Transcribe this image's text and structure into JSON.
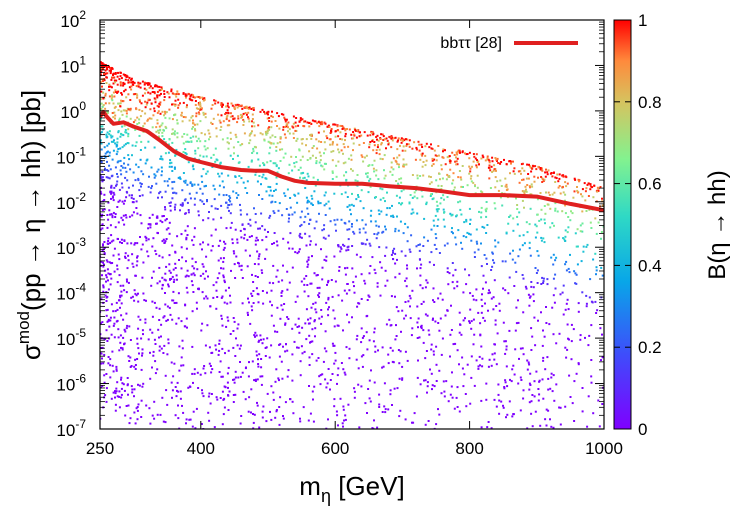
{
  "chart_data": {
    "type": "scatter",
    "x_scale": "linear",
    "y_scale": "log",
    "xlabel": {
      "base": "m",
      "sub": "η",
      "rest": " [GeV]"
    },
    "ylabel": {
      "base": "σ",
      "sup": "mod",
      "rest": "(pp → η → hh) [pb]"
    },
    "xlim": [
      250,
      1000
    ],
    "ylim": [
      1e-07,
      100
    ],
    "x_ticks": [
      {
        "value": 250,
        "label": "250"
      },
      {
        "value": 400,
        "label": "400"
      },
      {
        "value": 600,
        "label": "600"
      },
      {
        "value": 800,
        "label": "800"
      },
      {
        "value": 1000,
        "label": "1000"
      }
    ],
    "y_ticks": [
      {
        "exp": -7,
        "base": "10",
        "sup": "-7"
      },
      {
        "exp": -6,
        "base": "10",
        "sup": "-6"
      },
      {
        "exp": -5,
        "base": "10",
        "sup": "-5"
      },
      {
        "exp": -4,
        "base": "10",
        "sup": "-4"
      },
      {
        "exp": -3,
        "base": "10",
        "sup": "-3"
      },
      {
        "exp": -2,
        "base": "10",
        "sup": "-2"
      },
      {
        "exp": -1,
        "base": "10",
        "sup": "-1"
      },
      {
        "exp": 0,
        "base": "10",
        "sup": "0"
      },
      {
        "exp": 1,
        "base": "10",
        "sup": "1"
      },
      {
        "exp": 2,
        "base": "10",
        "sup": "2"
      }
    ],
    "colorbar": {
      "label": "B(η → hh)",
      "range": [
        0,
        1
      ],
      "ticks": [
        {
          "value": 0,
          "label": "0"
        },
        {
          "value": 0.2,
          "label": "0.2"
        },
        {
          "value": 0.4,
          "label": "0.4"
        },
        {
          "value": 0.6,
          "label": "0.6"
        },
        {
          "value": 0.8,
          "label": "0.8"
        },
        {
          "value": 1,
          "label": "1"
        }
      ],
      "palette": "rainbow (purple → blue → cyan → green → yellow → orange → red)"
    },
    "legend": {
      "label": "bbττ [28]",
      "placement": "top-right",
      "color": "#e02020"
    },
    "series": [
      {
        "name": "bbττ [28]",
        "type": "line",
        "color": "#e02020",
        "x": [
          250,
          255,
          260,
          270,
          285,
          300,
          320,
          340,
          360,
          380,
          400,
          430,
          460,
          480,
          500,
          520,
          540,
          560,
          600,
          640,
          680,
          720,
          760,
          800,
          850,
          900,
          950,
          1000
        ],
        "y": [
          0.75,
          0.95,
          0.75,
          0.52,
          0.56,
          0.45,
          0.36,
          0.22,
          0.13,
          0.09,
          0.075,
          0.058,
          0.05,
          0.048,
          0.048,
          0.036,
          0.029,
          0.026,
          0.025,
          0.025,
          0.022,
          0.02,
          0.017,
          0.014,
          0.014,
          0.013,
          0.009,
          0.0065
        ]
      },
      {
        "name": "scan points",
        "type": "scatter",
        "description_values": {
          "upper_envelope_x": [
            250,
            300,
            400,
            500,
            600,
            700,
            800,
            900,
            1000
          ],
          "upper_envelope_y": [
            12,
            5,
            2,
            1,
            0.5,
            0.25,
            0.12,
            0.06,
            0.02
          ],
          "lower_extent_y": 1e-07,
          "color_value_range": [
            0,
            1
          ]
        }
      }
    ]
  }
}
